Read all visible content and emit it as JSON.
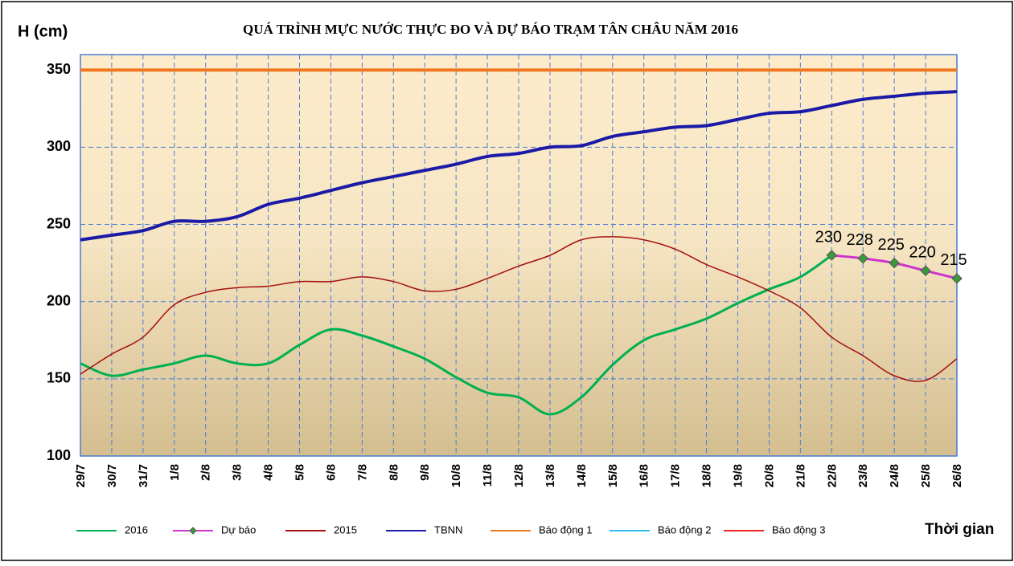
{
  "chart_data": {
    "type": "line",
    "title": "QUÁ TRÌNH MỰC NƯỚC THỰC ĐO VÀ DỰ BÁO TRẠM TÂN CHÂU NĂM 2016",
    "y_label": "H (cm)",
    "x_label": "Thời gian",
    "categories": [
      "29/7",
      "30/7",
      "31/7",
      "1/8",
      "2/8",
      "3/8",
      "4/8",
      "5/8",
      "6/8",
      "7/8",
      "8/8",
      "9/8",
      "10/8",
      "11/8",
      "12/8",
      "13/8",
      "14/8",
      "15/8",
      "16/8",
      "17/8",
      "18/8",
      "19/8",
      "20/8",
      "21/8",
      "22/8",
      "23/8",
      "24/8",
      "25/8",
      "26/8"
    ],
    "ylim": [
      100,
      360
    ],
    "yticks": [
      100,
      150,
      200,
      250,
      300,
      350
    ],
    "grid": true,
    "series": [
      {
        "name": "2016",
        "color": "#00b050",
        "values": [
          160,
          152,
          156,
          160,
          165,
          160,
          160,
          172,
          182,
          178,
          171,
          163,
          151,
          141,
          138,
          127,
          138,
          159,
          175,
          182,
          189,
          199,
          208,
          216,
          230,
          null,
          null,
          null,
          null
        ]
      },
      {
        "name": "Dự báo",
        "color": "#cc33cc",
        "marker": "diamond",
        "values": [
          null,
          null,
          null,
          null,
          null,
          null,
          null,
          null,
          null,
          null,
          null,
          null,
          null,
          null,
          null,
          null,
          null,
          null,
          null,
          null,
          null,
          null,
          null,
          null,
          230,
          228,
          225,
          220,
          215
        ]
      },
      {
        "name": "2015",
        "color": "#a50f0f",
        "values": [
          153,
          166,
          177,
          198,
          206,
          209,
          210,
          213,
          213,
          216,
          213,
          207,
          208,
          215,
          223,
          230,
          240,
          242,
          240,
          234,
          224,
          216,
          207,
          196,
          177,
          165,
          152,
          149,
          163
        ]
      },
      {
        "name": "TBNN",
        "color": "#1a1aa6",
        "values": [
          240,
          243,
          246,
          252,
          252,
          255,
          263,
          267,
          272,
          277,
          281,
          285,
          289,
          294,
          296,
          300,
          301,
          307,
          310,
          313,
          314,
          318,
          322,
          323,
          327,
          331,
          333,
          335,
          336
        ]
      },
      {
        "name": "Báo động 1",
        "color": "#f07820",
        "values": [
          350,
          350,
          350,
          350,
          350,
          350,
          350,
          350,
          350,
          350,
          350,
          350,
          350,
          350,
          350,
          350,
          350,
          350,
          350,
          350,
          350,
          350,
          350,
          350,
          350,
          350,
          350,
          350,
          350
        ]
      },
      {
        "name": "Báo động 2",
        "color": "#33bbee",
        "values": [
          null,
          null,
          null,
          null,
          null,
          null,
          null,
          null,
          null,
          null,
          null,
          null,
          null,
          null,
          null,
          null,
          null,
          null,
          null,
          null,
          null,
          null,
          null,
          null,
          null,
          null,
          null,
          null,
          null
        ]
      },
      {
        "name": "Báo động 3",
        "color": "#ee2222",
        "values": [
          null,
          null,
          null,
          null,
          null,
          null,
          null,
          null,
          null,
          null,
          null,
          null,
          null,
          null,
          null,
          null,
          null,
          null,
          null,
          null,
          null,
          null,
          null,
          null,
          null,
          null,
          null,
          null,
          null
        ]
      }
    ]
  }
}
